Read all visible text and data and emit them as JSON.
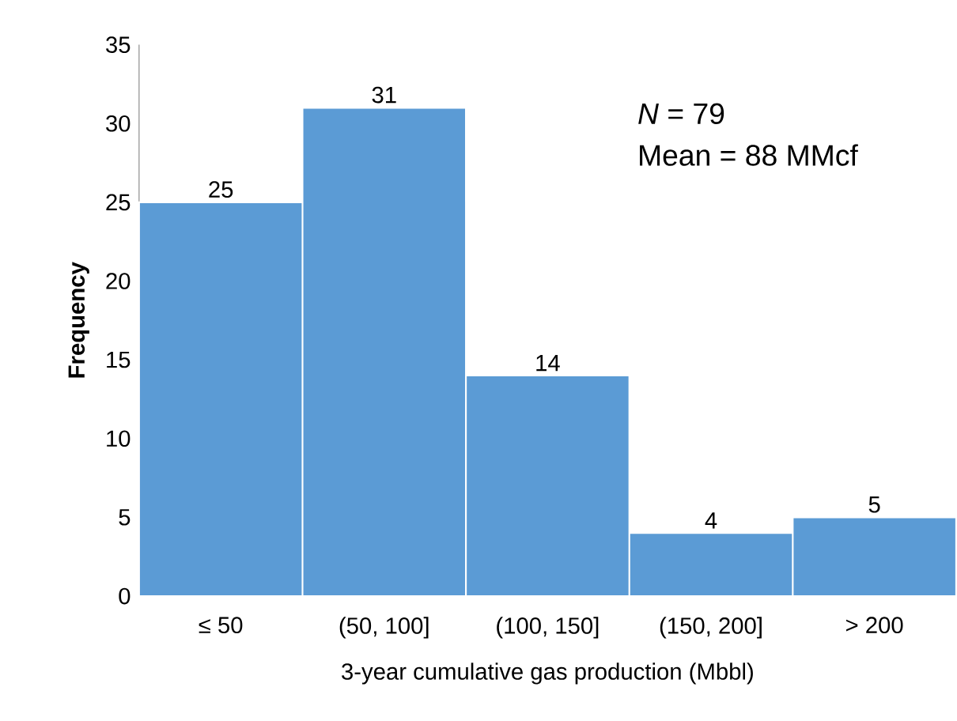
{
  "chart_data": {
    "type": "bar",
    "xlabel": "3-year cumulative gas production (Mbbl)",
    "ylabel": "Frequency",
    "categories": [
      "≤ 50",
      "(50, 100]",
      "(100, 150]",
      "(150, 200]",
      "> 200"
    ],
    "values": [
      25,
      31,
      14,
      4,
      5
    ],
    "color": "#5b9bd5",
    "data_labels": true,
    "ylim": [
      0,
      35
    ],
    "yticks": [
      0,
      5,
      10,
      15,
      20,
      25,
      30,
      35
    ],
    "grid": false,
    "annotations": [
      "*N* = 79",
      "Mean = 88 MMcf"
    ]
  }
}
